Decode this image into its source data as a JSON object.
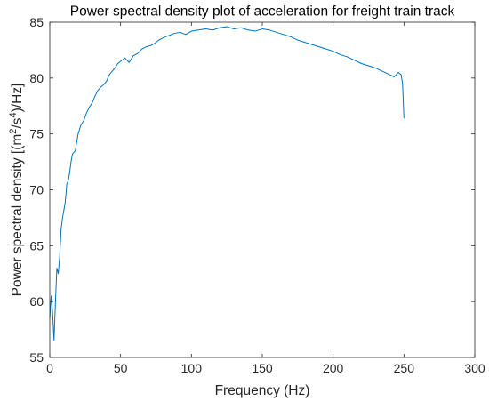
{
  "chart_data": {
    "type": "line",
    "title": "Power spectral density plot of acceleration for freight train track",
    "xlabel": "Frequency (Hz)",
    "ylabel": {
      "main": "Power spectral density [(m",
      "sup1": "2",
      "mid": "/s",
      "sup2": "4",
      "tail": ")/Hz]"
    },
    "xlim": [
      0,
      300
    ],
    "ylim": [
      55,
      85
    ],
    "xticks": [
      0,
      50,
      100,
      150,
      200,
      250,
      300
    ],
    "yticks": [
      55,
      60,
      65,
      70,
      75,
      80,
      85
    ],
    "grid": false,
    "series": [
      {
        "color": "#0072BD",
        "x": [
          0,
          1,
          2,
          3,
          4,
          5,
          6,
          7,
          8,
          9,
          10,
          11,
          12,
          13,
          14,
          15,
          16,
          18,
          20,
          22,
          24,
          26,
          28,
          30,
          32,
          34,
          36,
          38,
          40,
          42,
          44,
          46,
          48,
          50,
          53,
          56,
          59,
          62,
          65,
          68,
          71,
          74,
          77,
          80,
          84,
          88,
          92,
          96,
          100,
          105,
          110,
          115,
          120,
          125,
          130,
          135,
          140,
          145,
          150,
          155,
          160,
          165,
          170,
          175,
          180,
          185,
          190,
          195,
          200,
          205,
          210,
          215,
          220,
          225,
          230,
          235,
          240,
          243,
          246,
          248,
          249,
          250
        ],
        "y": [
          58.5,
          60.5,
          59,
          56.5,
          60,
          63,
          62.5,
          64,
          66.5,
          67.5,
          68.2,
          69,
          70.5,
          70.8,
          71.5,
          72.5,
          73.2,
          73.5,
          75,
          75.8,
          76.2,
          76.9,
          77.4,
          77.8,
          78.4,
          78.9,
          79.2,
          79.4,
          79.7,
          80.3,
          80.6,
          80.9,
          81.3,
          81.5,
          81.8,
          81.4,
          82,
          82.2,
          82.6,
          82.8,
          82.9,
          83.1,
          83.4,
          83.6,
          83.8,
          84,
          84.1,
          83.9,
          84.2,
          84.3,
          84.4,
          84.3,
          84.5,
          84.6,
          84.4,
          84.5,
          84.3,
          84.2,
          84.4,
          84.3,
          84.1,
          83.9,
          83.7,
          83.4,
          83.2,
          83,
          82.8,
          82.6,
          82.4,
          82.1,
          81.9,
          81.6,
          81.3,
          81.1,
          80.9,
          80.6,
          80.3,
          80.1,
          80.5,
          80.3,
          79.5,
          76.4
        ]
      }
    ]
  }
}
